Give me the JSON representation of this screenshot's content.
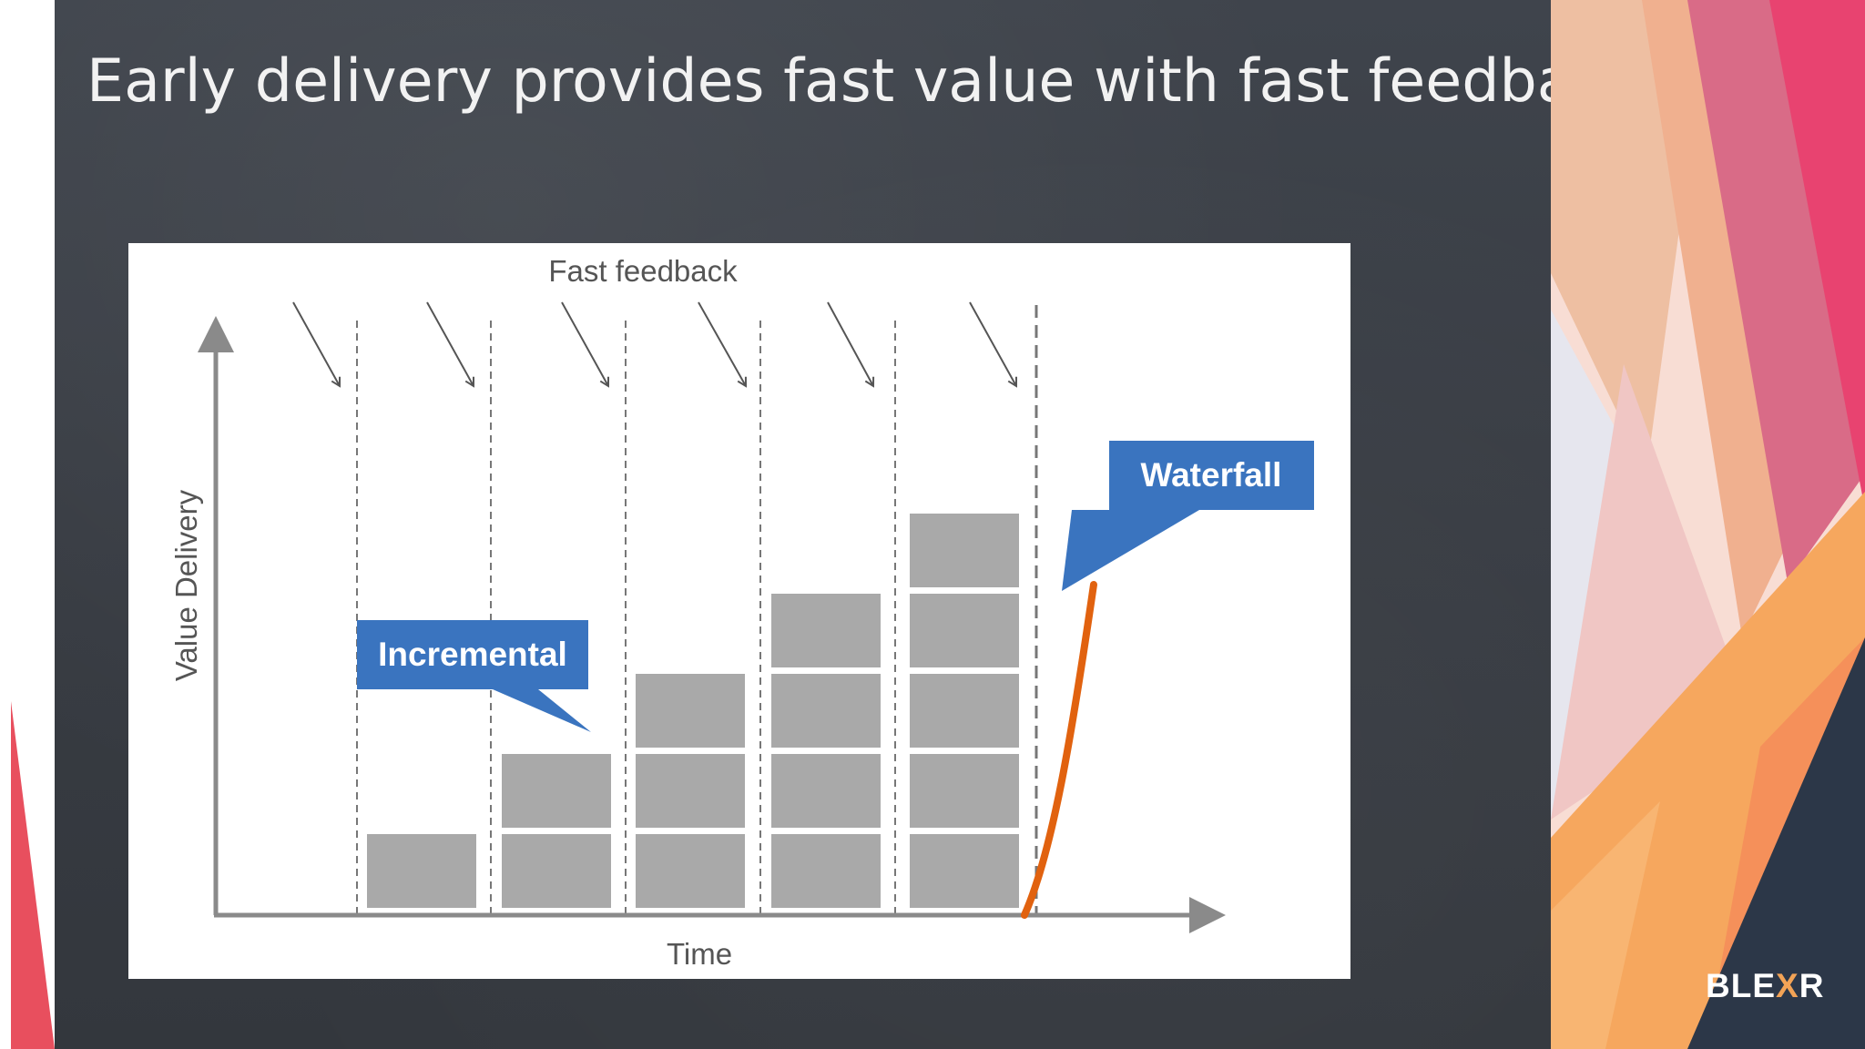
{
  "slide": {
    "title": "Early delivery provides fast value with fast feedback"
  },
  "diagram": {
    "feedback_label": "Fast feedback",
    "y_axis_label": "Value Delivery",
    "x_axis_label": "Time",
    "incremental_callout": "Incremental",
    "waterfall_callout": "Waterfall",
    "increment_block_counts": [
      1,
      2,
      3,
      4,
      5
    ],
    "colors": {
      "block": "#a9a9a9",
      "callout": "#3a74bf",
      "waterfall_curve": "#e1620f",
      "axis": "#8a8a8a"
    }
  },
  "logo": {
    "text_before": "BLE",
    "text_x": "X",
    "text_after": "R"
  }
}
